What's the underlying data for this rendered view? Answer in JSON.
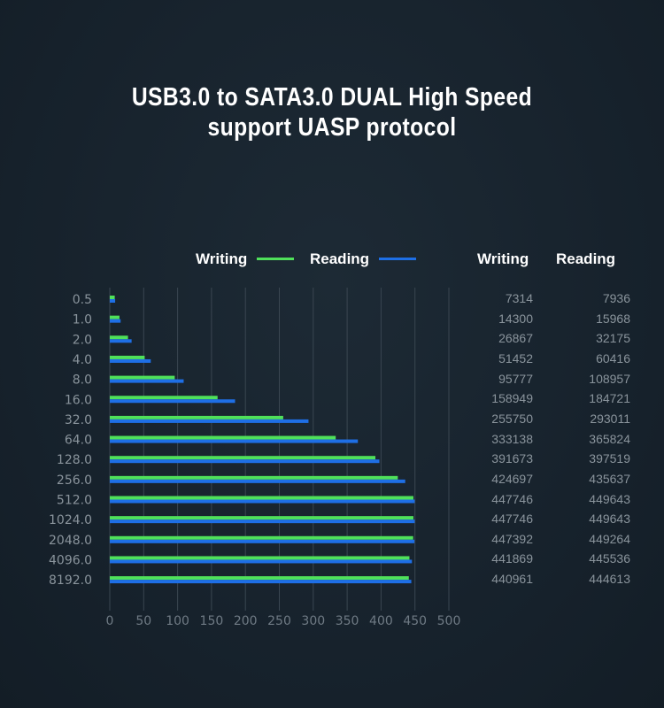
{
  "title_line1": "USB3.0 to SATA3.0 DUAL High Speed",
  "title_line2": "support UASP protocol",
  "table_headers": {
    "writing": "Writing",
    "reading": "Reading"
  },
  "colors": {
    "writing": "#4fe05a",
    "reading": "#1e6fe6",
    "background": "#17232d"
  },
  "chart_data": {
    "type": "bar",
    "orientation": "horizontal",
    "categories": [
      "0.5",
      "1.0",
      "2.0",
      "4.0",
      "8.0",
      "16.0",
      "32.0",
      "64.0",
      "128.0",
      "256.0",
      "512.0",
      "1024.0",
      "2048.0",
      "4096.0",
      "8192.0"
    ],
    "series": [
      {
        "name": "Writing",
        "values": [
          7314,
          14300,
          26867,
          51452,
          95777,
          158949,
          255750,
          333138,
          391673,
          424697,
          447746,
          447746,
          447392,
          441869,
          440961
        ]
      },
      {
        "name": "Reading",
        "values": [
          7936,
          15968,
          32175,
          60416,
          108957,
          184721,
          293011,
          365824,
          397519,
          435637,
          449643,
          449643,
          449264,
          445536,
          444613
        ]
      }
    ],
    "xlim": [
      0,
      500
    ],
    "xticks": [
      "0",
      "50",
      "100",
      "150",
      "200",
      "250",
      "300",
      "350",
      "400",
      "450",
      "500"
    ],
    "grid": true,
    "legend": "top"
  }
}
